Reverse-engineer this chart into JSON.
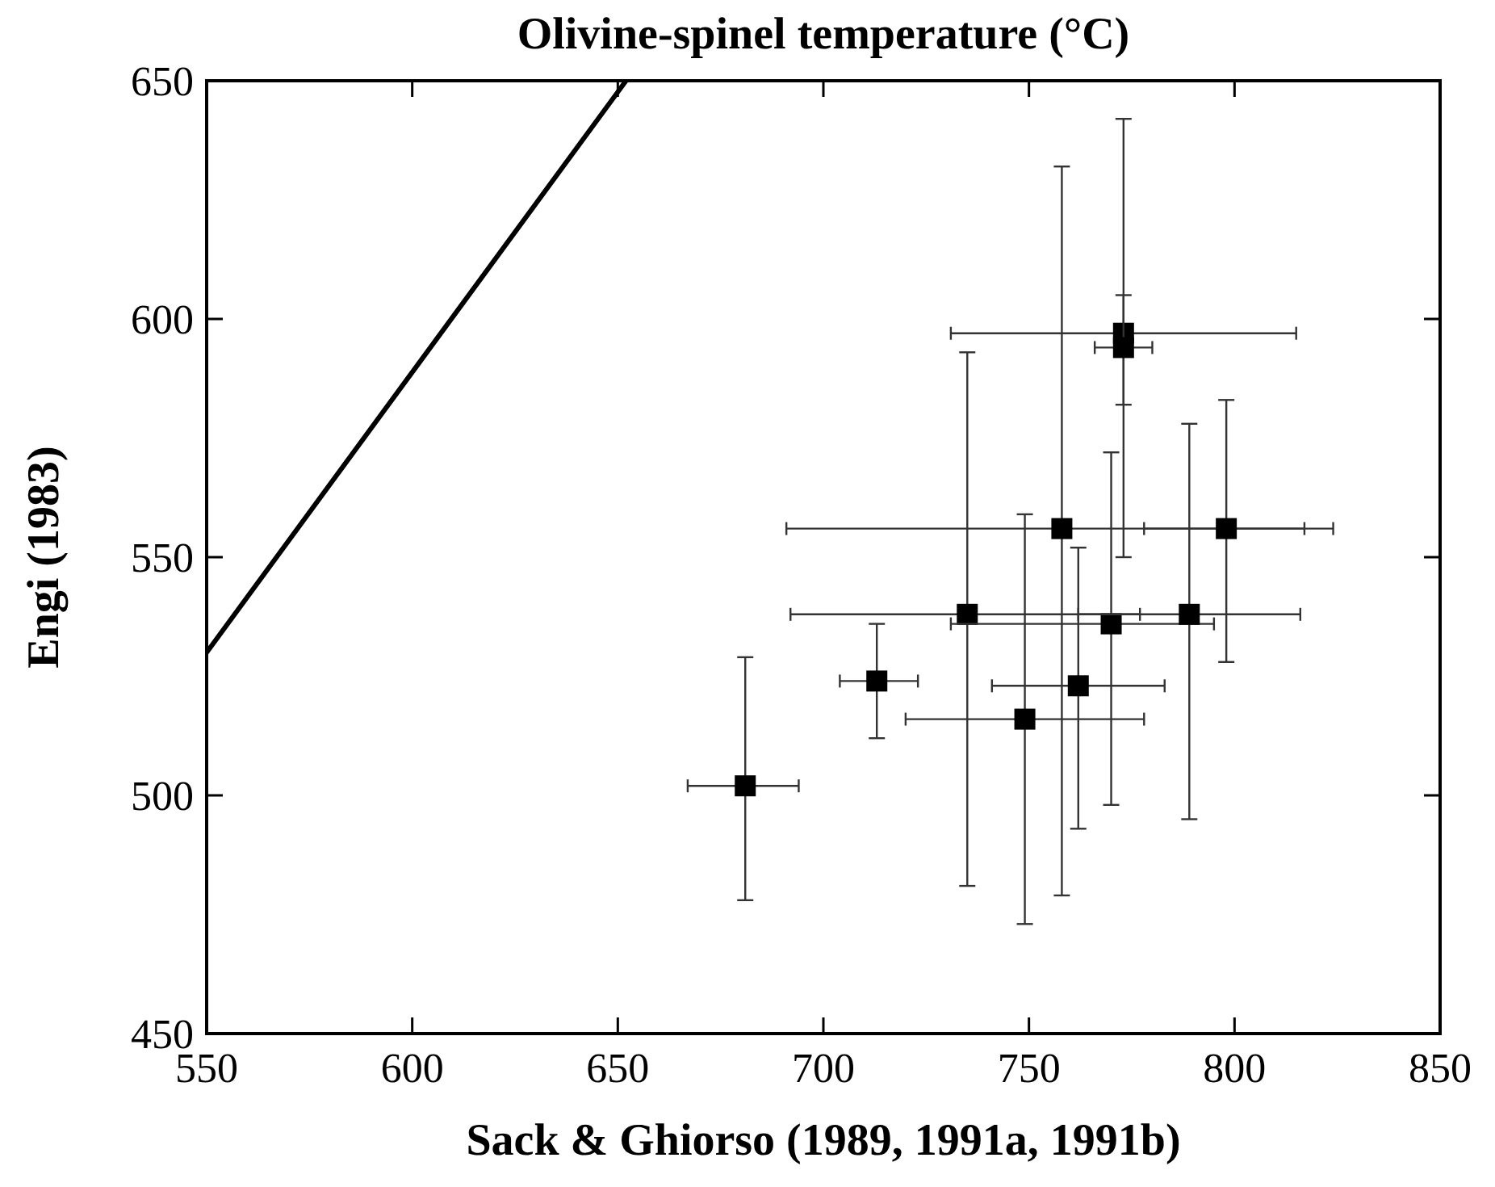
{
  "chart_data": {
    "type": "scatter",
    "title": "Olivine-spinel temperature (°C)",
    "xlabel": "Sack & Ghiorso (1989, 1991a, 1991b)",
    "ylabel": "Engi (1983)",
    "xlim": [
      550,
      850
    ],
    "ylim": [
      450,
      650
    ],
    "xticks": [
      550,
      600,
      650,
      700,
      750,
      800,
      850
    ],
    "yticks": [
      450,
      500,
      550,
      600,
      650
    ],
    "grid": false,
    "marker": "square",
    "series": [
      {
        "color": "#000000",
        "x": [
          681,
          713,
          735,
          749,
          762,
          758,
          770,
          798,
          789,
          773,
          773
        ],
        "values": [
          502,
          524,
          538,
          516,
          523,
          556,
          536,
          556,
          538,
          597,
          594
        ],
        "xerrors": [
          [
            667,
            694
          ],
          [
            704,
            723
          ],
          [
            692,
            777
          ],
          [
            720,
            778
          ],
          [
            741,
            783
          ],
          [
            691,
            817
          ],
          [
            731,
            795
          ],
          [
            778,
            824
          ],
          [
            762,
            816
          ],
          [
            731,
            815
          ],
          [
            766,
            780
          ]
        ],
        "errors": [
          [
            478,
            529
          ],
          [
            512,
            536
          ],
          [
            481,
            593
          ],
          [
            473,
            559
          ],
          [
            493,
            552
          ],
          [
            479,
            632
          ],
          [
            498,
            572
          ],
          [
            528,
            583
          ],
          [
            495,
            578
          ],
          [
            550,
            642
          ],
          [
            582,
            605
          ]
        ]
      },
      {
        "type": "line",
        "color": "#000000",
        "x": [
          550,
          652
        ],
        "values": [
          530,
          650
        ],
        "marker": "none",
        "line_style": "solid"
      }
    ]
  }
}
